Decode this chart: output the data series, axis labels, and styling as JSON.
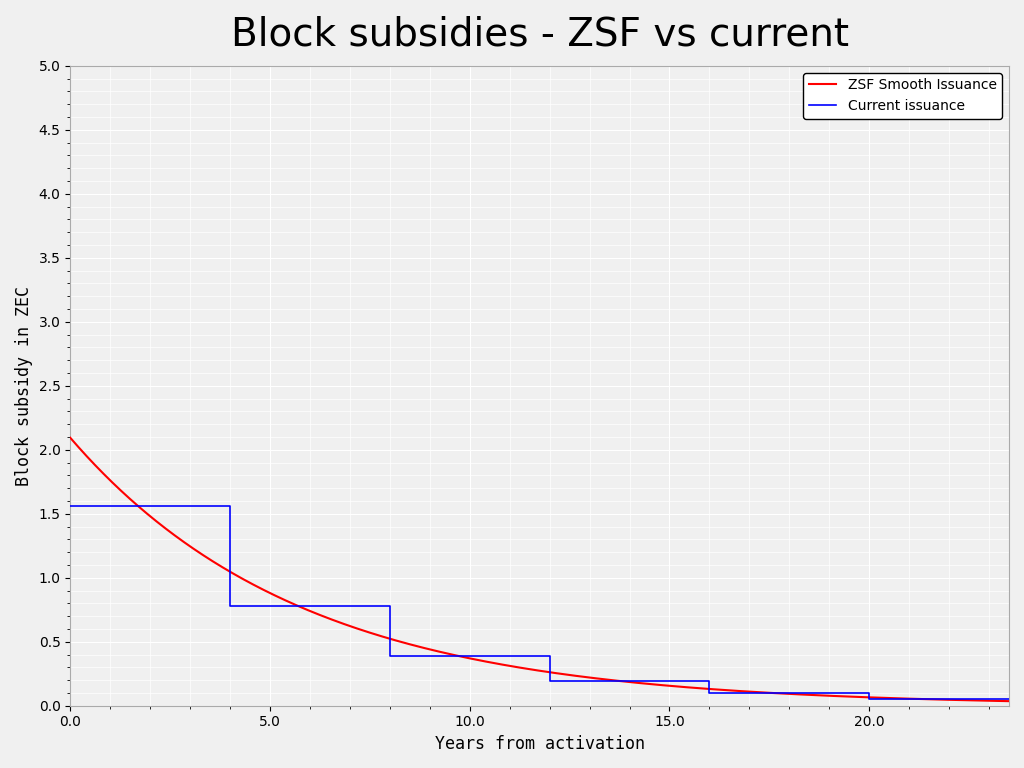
{
  "title": "Block subsidies - ZSF vs current",
  "xlabel": "Years from activation",
  "ylabel": "Block subsidy in ZEC",
  "xlim": [
    0,
    23.5
  ],
  "ylim": [
    0,
    5.0
  ],
  "yticks": [
    0.0,
    0.5,
    1.0,
    1.5,
    2.0,
    2.5,
    3.0,
    3.5,
    4.0,
    4.5,
    5.0
  ],
  "xticks": [
    0.0,
    5.0,
    10.0,
    15.0,
    20.0
  ],
  "smooth_color": "red",
  "step_color": "blue",
  "smooth_label": "ZSF Smooth Issuance",
  "step_label": "Current issuance",
  "background_color": "#f0f0f0",
  "grid_color": "#ffffff",
  "title_fontsize": 28,
  "axis_label_fontsize": 12,
  "tick_fontsize": 10,
  "legend_fontsize": 10,
  "smooth_start": 2.09375,
  "halving_period_years": 4.0,
  "step_start": 1.5625,
  "max_t": 23.5,
  "n_halvings": 8
}
